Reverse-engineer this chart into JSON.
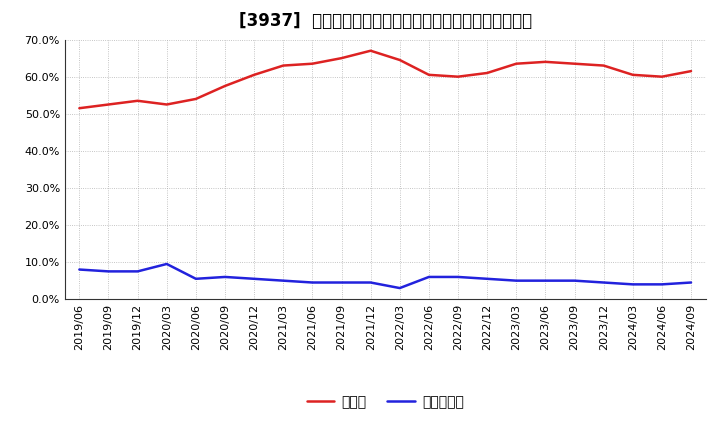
{
  "title": "[3937]  現預金、有利子負債の総資産に対する比率の推移",
  "x_labels": [
    "2019/06",
    "2019/09",
    "2019/12",
    "2020/03",
    "2020/06",
    "2020/09",
    "2020/12",
    "2021/03",
    "2021/06",
    "2021/09",
    "2021/12",
    "2022/03",
    "2022/06",
    "2022/09",
    "2022/12",
    "2023/03",
    "2023/06",
    "2023/09",
    "2023/12",
    "2024/03",
    "2024/06",
    "2024/09"
  ],
  "cash": [
    51.5,
    52.5,
    53.5,
    52.5,
    54.0,
    57.5,
    60.5,
    63.0,
    63.5,
    65.0,
    67.0,
    64.5,
    60.5,
    60.0,
    61.0,
    63.5,
    64.0,
    63.5,
    63.0,
    60.5,
    60.0,
    61.5
  ],
  "debt": [
    8.0,
    7.5,
    7.5,
    9.5,
    5.5,
    6.0,
    5.5,
    5.0,
    4.5,
    4.5,
    4.5,
    3.0,
    6.0,
    6.0,
    5.5,
    5.0,
    5.0,
    5.0,
    4.5,
    4.0,
    4.0,
    4.5
  ],
  "cash_color": "#dd2222",
  "debt_color": "#2222dd",
  "background_color": "#ffffff",
  "grid_color": "#aaaaaa",
  "ylim": [
    0,
    70
  ],
  "yticks": [
    0,
    10,
    20,
    30,
    40,
    50,
    60,
    70
  ],
  "legend_cash": "現預金",
  "legend_debt": "有利子負債",
  "title_fontsize": 12,
  "axis_fontsize": 8,
  "legend_fontsize": 10
}
